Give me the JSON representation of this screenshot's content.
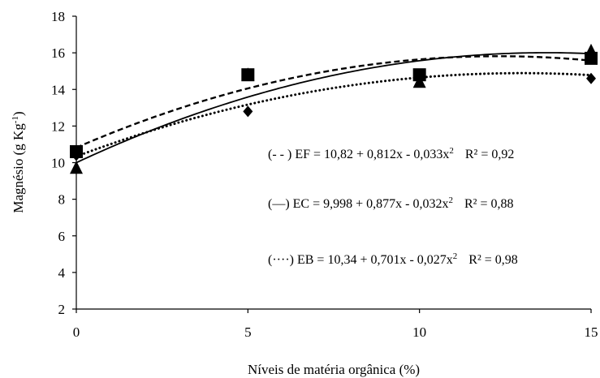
{
  "chart_data": {
    "type": "scatter",
    "xlabel": "Níveis de matéria orgânica (%)",
    "ylabel_main": "Magnésio (g Kg",
    "ylabel_sup": "-1",
    "ylabel_close": ")",
    "xlim": [
      0,
      15
    ],
    "ylim": [
      2,
      18
    ],
    "xticks": [
      0,
      5,
      10,
      15
    ],
    "xtick_labels": [
      "0",
      "5",
      "10",
      "15"
    ],
    "yticks": [
      2,
      4,
      6,
      8,
      10,
      12,
      14,
      16,
      18
    ],
    "ytick_labels": [
      "2",
      "4",
      "6",
      "8",
      "10",
      "12",
      "14",
      "16",
      "18"
    ],
    "grid": false,
    "series": [
      {
        "key": "EF",
        "marker": "square",
        "line_style": "dashed",
        "x": [
          0,
          5,
          10,
          15
        ],
        "values": [
          10.6,
          14.8,
          14.8,
          15.7
        ],
        "fit": {
          "a": 10.82,
          "b": 0.812,
          "c": -0.033
        },
        "equation": {
          "prefix": "(- - ) EF = 10,82 + 0,812x - 0,033x",
          "exp": "2",
          "r2": "R² = 0,92"
        }
      },
      {
        "key": "EC",
        "marker": "triangle",
        "line_style": "solid",
        "x": [
          0,
          5,
          10,
          15
        ],
        "values": [
          9.7,
          14.8,
          14.4,
          16.1
        ],
        "fit": {
          "a": 9.998,
          "b": 0.877,
          "c": -0.032
        },
        "equation": {
          "prefix": "(—) EC = 9,998 + 0,877x - 0,032x",
          "exp": "2",
          "r2": "R² = 0,88"
        }
      },
      {
        "key": "EB",
        "marker": "diamond",
        "line_style": "dotted",
        "x": [
          0,
          5,
          10,
          15
        ],
        "values": [
          10.4,
          12.8,
          14.7,
          14.6
        ],
        "fit": {
          "a": 10.34,
          "b": 0.701,
          "c": -0.027
        },
        "equation": {
          "prefix": "(····) EB = 10,34 + 0,701x - 0,027x",
          "exp": "2",
          "r2": "R² = 0,98"
        }
      }
    ]
  }
}
